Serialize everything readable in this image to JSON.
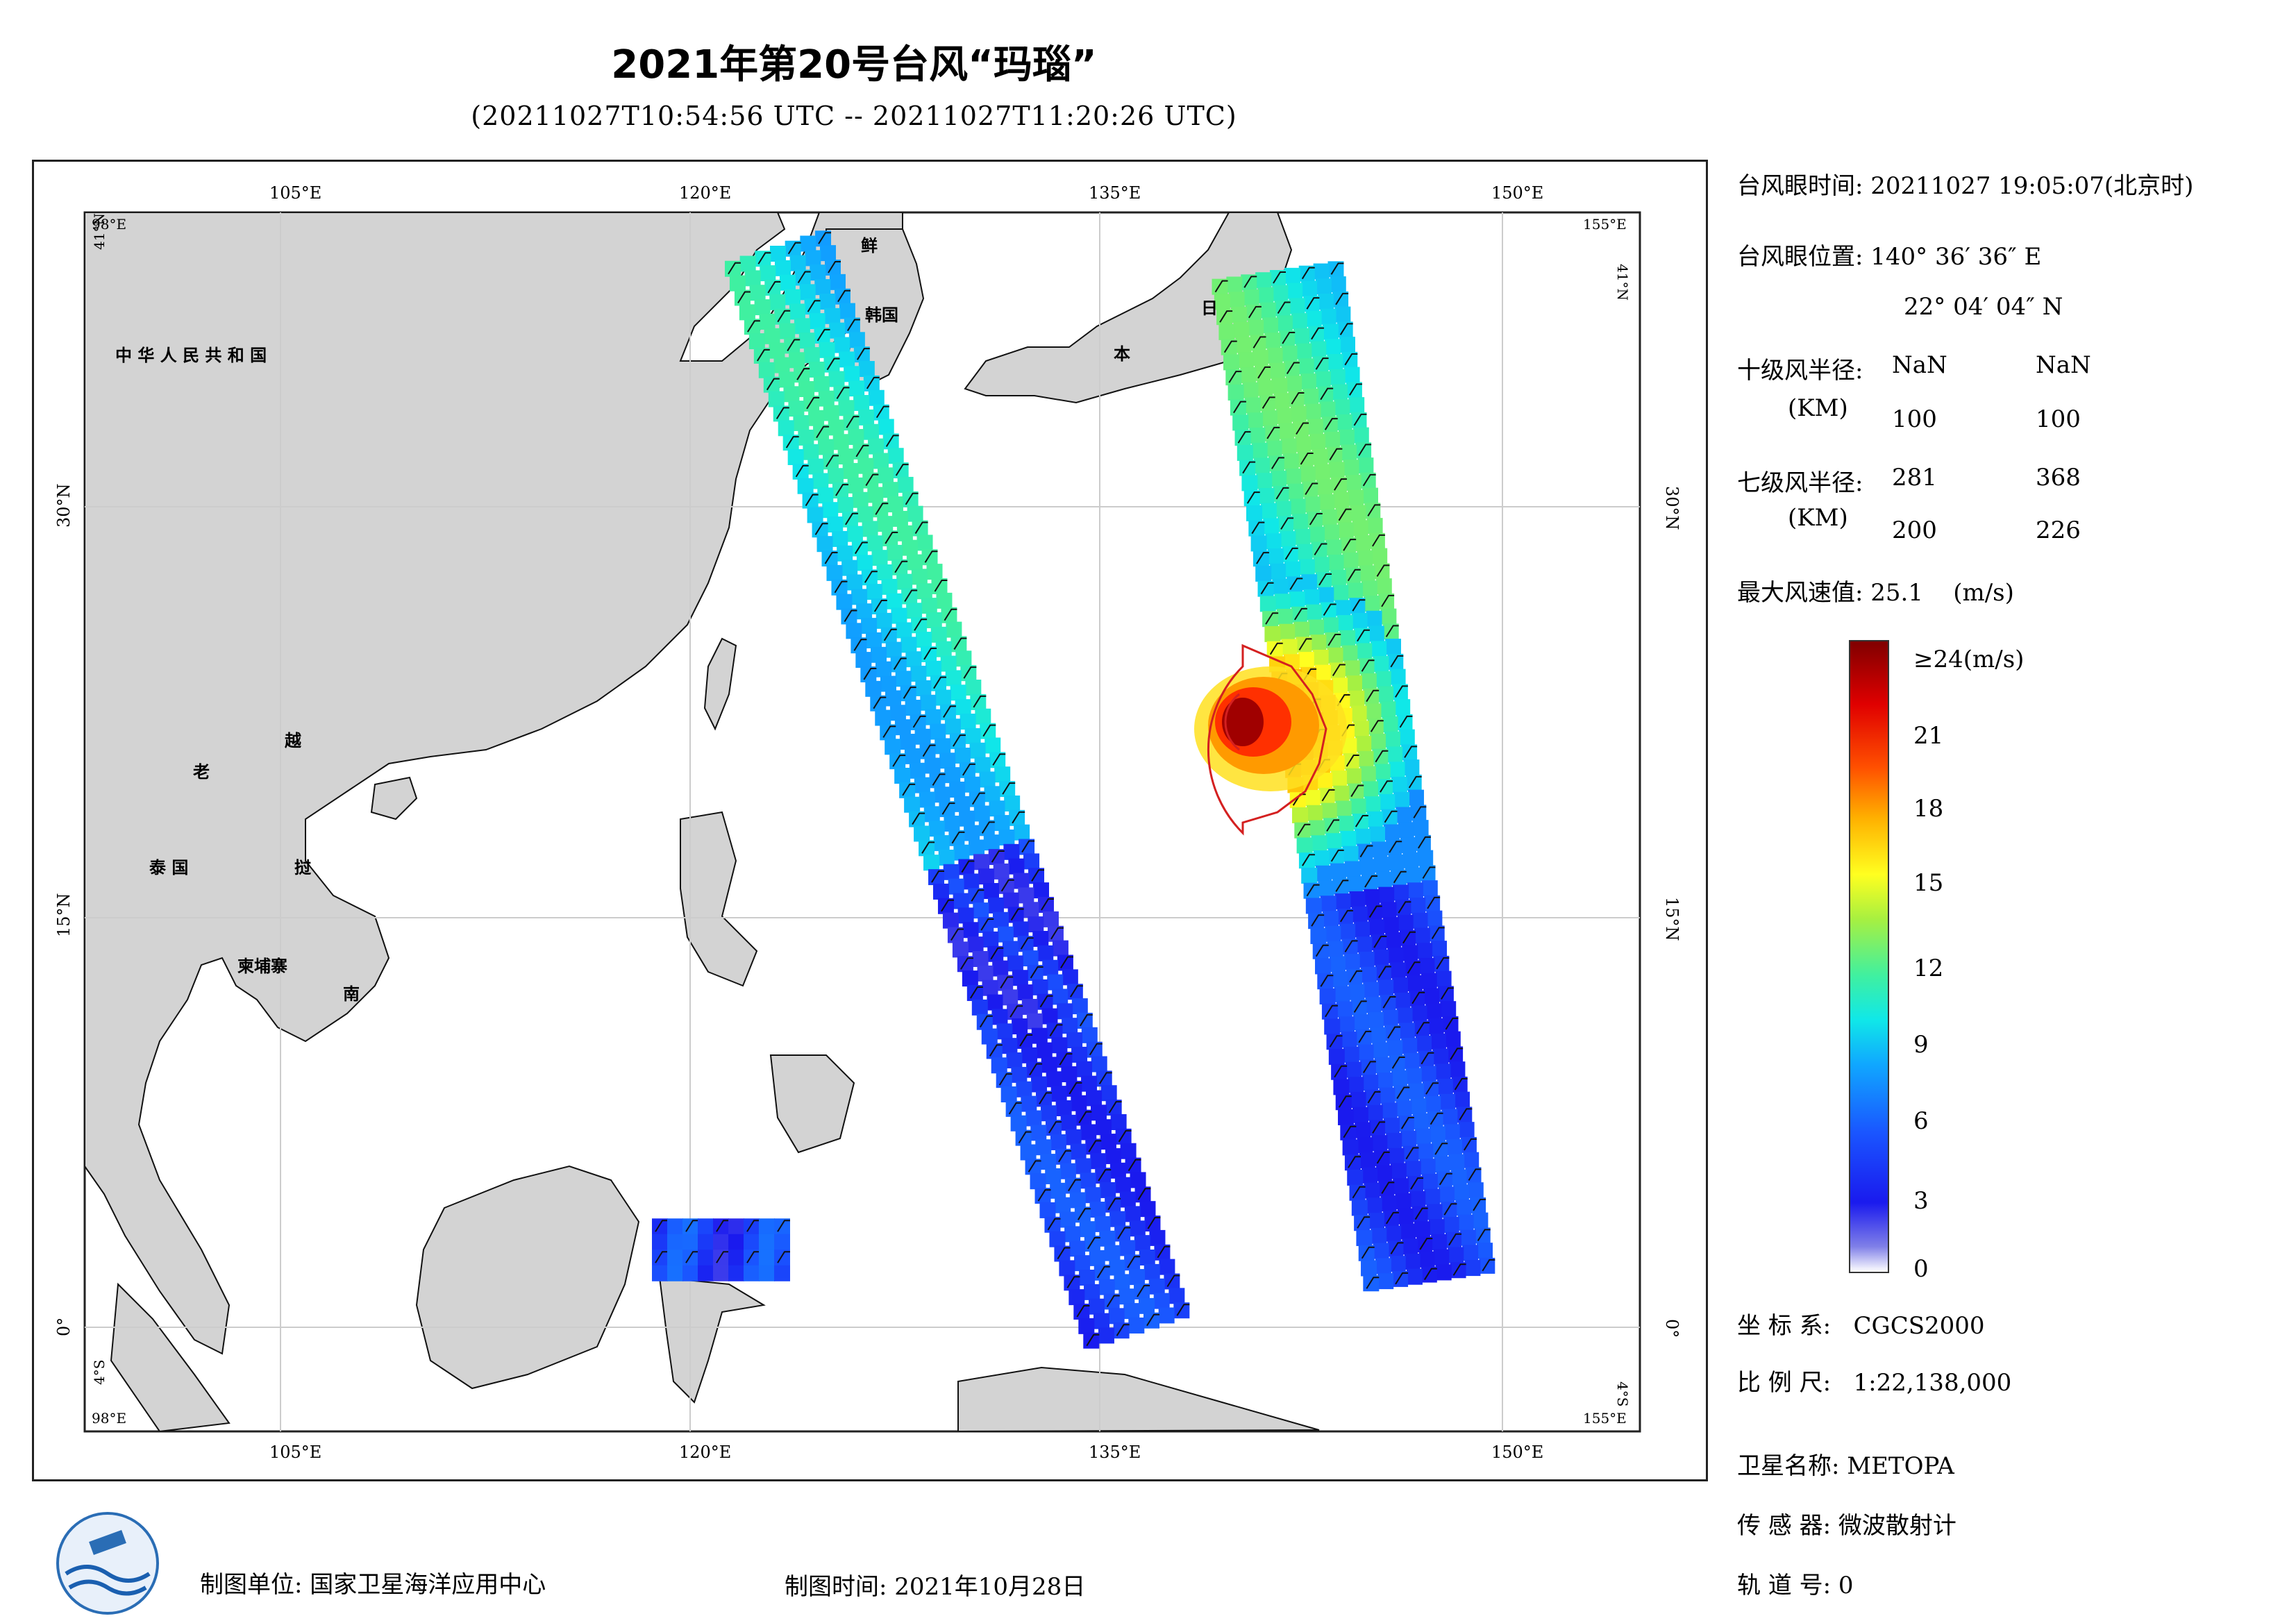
{
  "title": "2021年第20号台风“玛瑙”",
  "subtitle": "(20211027T10:54:56 UTC -- 20211027T11:20:26 UTC)",
  "map": {
    "lon_ticks": [
      "105°E",
      "120°E",
      "135°E",
      "150°E"
    ],
    "lat_ticks": [
      "30°N",
      "15°N",
      "0°"
    ],
    "corner_labels": {
      "top_left_lon": "98°E",
      "top_left_lat": "41°N",
      "top_right_lon": "155°E",
      "top_right_lat": "41°N",
      "bottom_left_lon": "98°E",
      "bottom_left_lat": "4°S",
      "bottom_right_lon": "155°E",
      "bottom_right_lat": "4°S"
    },
    "place_labels": {
      "china": "中 华 人 民 共 和 国",
      "laos": "老",
      "vietnam_1": "越",
      "vietnam_2": "南",
      "thailand": "泰 国",
      "cambodia": "柬埔寨",
      "laos_2": "挝",
      "korea_1": "鲜",
      "korea_2": "韩国",
      "japan_1": "日",
      "japan_2": "本"
    },
    "extent": {
      "lon": [
        98,
        155
      ],
      "lat": [
        -4,
        41
      ]
    },
    "typhoon_eye": {
      "lon": 140.61,
      "lat": 22.07
    }
  },
  "info": {
    "eye_time_label": "台风眼时间:",
    "eye_time_value": "20211027 19:05:07(北京时)",
    "eye_pos_label": "台风眼位置:",
    "eye_pos_lon": "140° 36′ 36″ E",
    "eye_pos_lat": "22° 04′ 04″ N",
    "r10_label": "十级风半径:",
    "r10_unit": "(KM)",
    "r10_values": [
      "NaN",
      "NaN",
      "100",
      "100"
    ],
    "r7_label": "七级风半径:",
    "r7_unit": "(KM)",
    "r7_values": [
      "281",
      "368",
      "200",
      "226"
    ],
    "max_wind_label": "最大风速值:",
    "max_wind_value": "25.1",
    "max_wind_unit": "(m/s)",
    "crs_label": "坐 标 系:",
    "crs_value": "CGCS2000",
    "scale_label": "比 例 尺:",
    "scale_value": "1:22,138,000",
    "sat_label": "卫星名称:",
    "sat_value": "METOPA",
    "sensor_label": "传 感 器:",
    "sensor_value": "微波散射计",
    "orbit_label": "轨 道 号:",
    "orbit_value": "0"
  },
  "colorbar": {
    "ticks": [
      "≥24(m/s)",
      "21",
      "18",
      "15",
      "12",
      "9",
      "6",
      "3",
      "0"
    ],
    "range": [
      0,
      24
    ],
    "unit": "m/s"
  },
  "footer": {
    "producer": "制图单位: 国家卫星海洋应用中心",
    "date": "制图时间: 2021年10月28日"
  },
  "colors": {
    "land": "#d3d3d3",
    "frame": "#222222",
    "wind_radius": "#d42020"
  }
}
